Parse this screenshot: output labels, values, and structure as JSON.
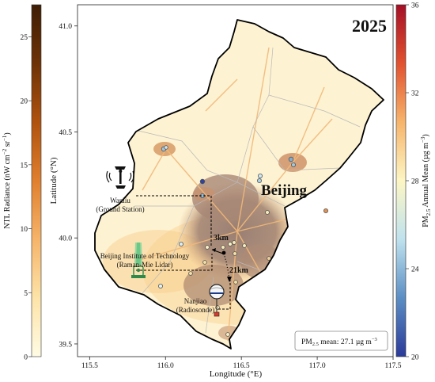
{
  "year": "2025",
  "region_label": "Beijing",
  "x_axis": {
    "label": "Longitude (°E)",
    "ticks": [
      "115.5",
      "116.0",
      "116.5",
      "117.0",
      "117.5"
    ]
  },
  "y_axis": {
    "label": "Latitude (°N)",
    "ticks": [
      "41.0",
      "40.5",
      "40.0",
      "39.5"
    ]
  },
  "ntl_colorbar": {
    "label_main": "NTL Radiance (nW cm",
    "label_sup1": "−2",
    "label_mid": " sr",
    "label_sup2": "−1",
    "label_end": ")",
    "ticks": [
      "0",
      "5",
      "10",
      "15",
      "20",
      "25"
    ],
    "colors": [
      "#fffbe4",
      "#fde3a8",
      "#f6b46a",
      "#e07f2e",
      "#b0520f",
      "#6e3207",
      "#3f1e06"
    ]
  },
  "pm_colorbar": {
    "label_main": "PM",
    "label_sub": "2.5",
    "label_end": " Annual Mean (µg m",
    "label_sup": "−3",
    "label_close": ")",
    "ticks": [
      "20",
      "24",
      "28",
      "32",
      "36"
    ],
    "colors": [
      "#2b3a9a",
      "#5b8ec4",
      "#bfe2ee",
      "#fdf6c4",
      "#f7b46b",
      "#e2512f",
      "#a50f26"
    ]
  },
  "sites": {
    "wanliu": {
      "name": "Wanliu",
      "type": "(Ground Station)"
    },
    "bit": {
      "name": "Beijing Institute of Technology",
      "type": "(Raman-Mie Lidar)"
    },
    "nanjiao": {
      "name": "Nanjiao",
      "type": "(Radiosonde)"
    }
  },
  "distances": {
    "short": "3km",
    "long": "21km"
  },
  "pm_mean": {
    "prefix": "PM",
    "sub": "2.5",
    "text": " mean: 27.1 µg m",
    "sup": "−3"
  }
}
